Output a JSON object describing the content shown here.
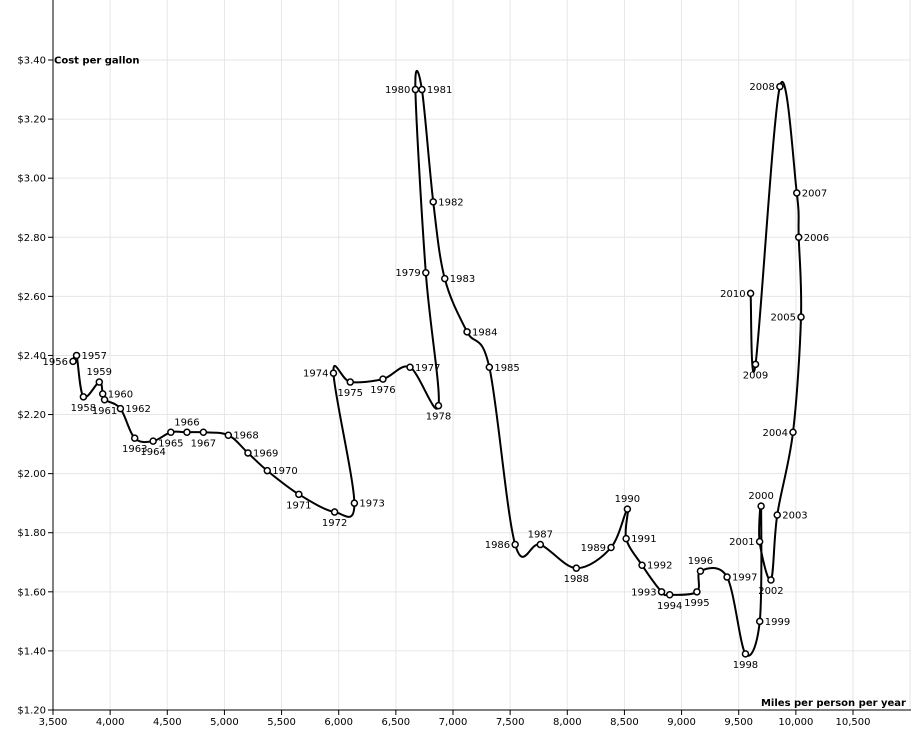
{
  "chart_data": {
    "type": "scatter",
    "connected": true,
    "xlabel": "Miles per person per year",
    "ylabel": "Cost per gallon",
    "xlim": [
      3500,
      10500
    ],
    "ylim": [
      1.2,
      3.4
    ],
    "grid": true,
    "x_ticks": [
      3500,
      4000,
      4500,
      5000,
      5500,
      6000,
      6500,
      7000,
      7500,
      8000,
      8500,
      9000,
      9500,
      10000,
      10500
    ],
    "x_tick_labels": [
      "3,500",
      "4,000",
      "4,500",
      "5,000",
      "5,500",
      "6,000",
      "6,500",
      "7,000",
      "7,500",
      "8,000",
      "8,500",
      "9,000",
      "9,500",
      "10,000",
      "10,500"
    ],
    "y_ticks": [
      1.2,
      1.4,
      1.6,
      1.8,
      2.0,
      2.2,
      2.4,
      2.6,
      2.8,
      3.0,
      3.2,
      3.4
    ],
    "y_tick_labels": [
      "$1.20",
      "$1.40",
      "$1.60",
      "$1.80",
      "$2.00",
      "$2.20",
      "$2.40",
      "$2.60",
      "$2.80",
      "$3.00",
      "$3.20",
      "$3.40"
    ],
    "points": [
      {
        "year": "1956",
        "x": 3675,
        "y": 2.38,
        "label_pos": "left"
      },
      {
        "year": "1957",
        "x": 3706,
        "y": 2.4,
        "label_pos": "right"
      },
      {
        "year": "1958",
        "x": 3766,
        "y": 2.26,
        "label_pos": "below"
      },
      {
        "year": "1959",
        "x": 3905,
        "y": 2.31,
        "label_pos": "above"
      },
      {
        "year": "1960",
        "x": 3935,
        "y": 2.27,
        "label_pos": "right"
      },
      {
        "year": "1961",
        "x": 3951,
        "y": 2.25,
        "label_pos": "below"
      },
      {
        "year": "1962",
        "x": 4090,
        "y": 2.22,
        "label_pos": "right"
      },
      {
        "year": "1963",
        "x": 4215,
        "y": 2.12,
        "label_pos": "below"
      },
      {
        "year": "1964",
        "x": 4376,
        "y": 2.11,
        "label_pos": "below"
      },
      {
        "year": "1965",
        "x": 4531,
        "y": 2.14,
        "label_pos": "below"
      },
      {
        "year": "1966",
        "x": 4672,
        "y": 2.14,
        "label_pos": "above"
      },
      {
        "year": "1967",
        "x": 4816,
        "y": 2.14,
        "label_pos": "below"
      },
      {
        "year": "1968",
        "x": 5034,
        "y": 2.13,
        "label_pos": "right"
      },
      {
        "year": "1969",
        "x": 5206,
        "y": 2.07,
        "label_pos": "right"
      },
      {
        "year": "1970",
        "x": 5375,
        "y": 2.01,
        "label_pos": "right"
      },
      {
        "year": "1971",
        "x": 5651,
        "y": 1.93,
        "label_pos": "below"
      },
      {
        "year": "1972",
        "x": 5964,
        "y": 1.87,
        "label_pos": "below"
      },
      {
        "year": "1973",
        "x": 6137,
        "y": 1.9,
        "label_pos": "right"
      },
      {
        "year": "1974",
        "x": 5954,
        "y": 2.34,
        "label_pos": "left"
      },
      {
        "year": "1975",
        "x": 6101,
        "y": 2.31,
        "label_pos": "below"
      },
      {
        "year": "1976",
        "x": 6387,
        "y": 2.32,
        "label_pos": "below"
      },
      {
        "year": "1977",
        "x": 6624,
        "y": 2.36,
        "label_pos": "right"
      },
      {
        "year": "1978",
        "x": 6873,
        "y": 2.23,
        "label_pos": "below"
      },
      {
        "year": "1979",
        "x": 6762,
        "y": 2.68,
        "label_pos": "left"
      },
      {
        "year": "1980",
        "x": 6671,
        "y": 3.3,
        "label_pos": "left"
      },
      {
        "year": "1981",
        "x": 6728,
        "y": 3.3,
        "label_pos": "right"
      },
      {
        "year": "1982",
        "x": 6827,
        "y": 2.92,
        "label_pos": "right"
      },
      {
        "year": "1983",
        "x": 6928,
        "y": 2.66,
        "label_pos": "right"
      },
      {
        "year": "1984",
        "x": 7123,
        "y": 2.48,
        "label_pos": "right"
      },
      {
        "year": "1985",
        "x": 7318,
        "y": 2.36,
        "label_pos": "right"
      },
      {
        "year": "1986",
        "x": 7544,
        "y": 1.76,
        "label_pos": "left"
      },
      {
        "year": "1987",
        "x": 7764,
        "y": 1.76,
        "label_pos": "above"
      },
      {
        "year": "1988",
        "x": 8079,
        "y": 1.68,
        "label_pos": "below"
      },
      {
        "year": "1989",
        "x": 8383,
        "y": 1.75,
        "label_pos": "left"
      },
      {
        "year": "1990",
        "x": 8526,
        "y": 1.88,
        "label_pos": "above"
      },
      {
        "year": "1991",
        "x": 8515,
        "y": 1.78,
        "label_pos": "right"
      },
      {
        "year": "1992",
        "x": 8654,
        "y": 1.69,
        "label_pos": "right"
      },
      {
        "year": "1993",
        "x": 8825,
        "y": 1.6,
        "label_pos": "left"
      },
      {
        "year": "1994",
        "x": 8896,
        "y": 1.59,
        "label_pos": "below"
      },
      {
        "year": "1995",
        "x": 9134,
        "y": 1.6,
        "label_pos": "below"
      },
      {
        "year": "1996",
        "x": 9165,
        "y": 1.67,
        "label_pos": "above"
      },
      {
        "year": "1997",
        "x": 9398,
        "y": 1.65,
        "label_pos": "right"
      },
      {
        "year": "1998",
        "x": 9559,
        "y": 1.39,
        "label_pos": "below"
      },
      {
        "year": "1999",
        "x": 9684,
        "y": 1.5,
        "label_pos": "right"
      },
      {
        "year": "2000",
        "x": 9696,
        "y": 1.89,
        "label_pos": "above"
      },
      {
        "year": "2001",
        "x": 9683,
        "y": 1.77,
        "label_pos": "left"
      },
      {
        "year": "2002",
        "x": 9782,
        "y": 1.64,
        "label_pos": "below"
      },
      {
        "year": "2003",
        "x": 9837,
        "y": 1.86,
        "label_pos": "right"
      },
      {
        "year": "2004",
        "x": 9975,
        "y": 2.14,
        "label_pos": "left"
      },
      {
        "year": "2005",
        "x": 10045,
        "y": 2.53,
        "label_pos": "left"
      },
      {
        "year": "2006",
        "x": 10025,
        "y": 2.8,
        "label_pos": "right"
      },
      {
        "year": "2007",
        "x": 10008,
        "y": 2.95,
        "label_pos": "right"
      },
      {
        "year": "2008",
        "x": 9860,
        "y": 3.31,
        "label_pos": "left"
      },
      {
        "year": "2009",
        "x": 9647,
        "y": 2.37,
        "label_pos": "below"
      },
      {
        "year": "2010",
        "x": 9604,
        "y": 2.61,
        "label_pos": "left"
      }
    ]
  }
}
